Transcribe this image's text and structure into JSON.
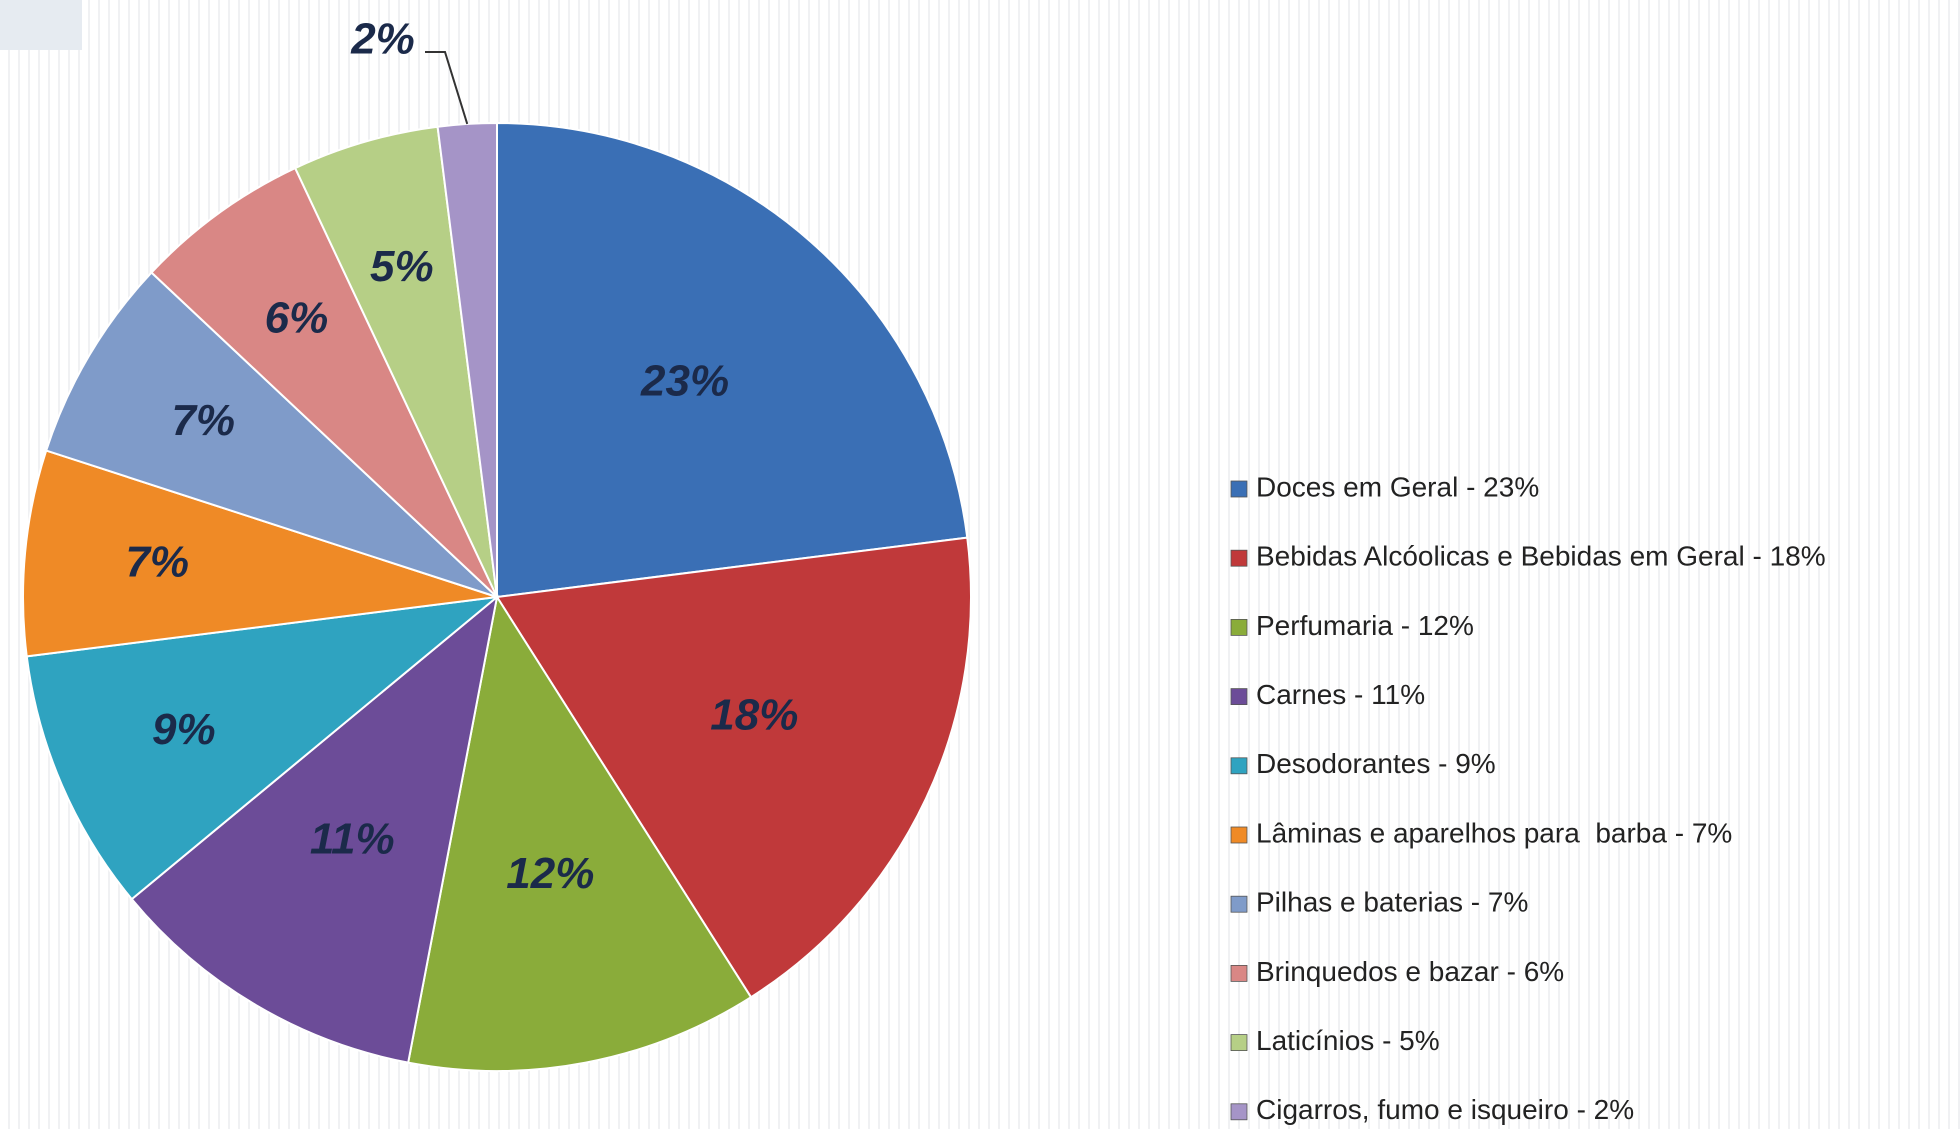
{
  "chart_data": {
    "type": "pie",
    "categories": [
      "Doces em Geral - 23%",
      "Bebidas Alcóolicas e Bebidas em Geral - 18%",
      "Perfumaria - 12%",
      "Carnes - 11%",
      "Desodorantes - 9%",
      "Lâminas e aparelhos para  barba - 7%",
      "Pilhas e baterias - 7%",
      "Brinquedos e bazar - 6%",
      "Laticínios - 5%",
      "Cigarros, fumo e isqueiro - 2%"
    ],
    "values": [
      23,
      18,
      12,
      11,
      9,
      7,
      7,
      6,
      5,
      2
    ],
    "value_labels": [
      "23%",
      "18%",
      "12%",
      "11%",
      "9%",
      "7%",
      "7%",
      "6%",
      "5%",
      "2%"
    ],
    "colors": [
      "#3a6fb5",
      "#c0393a",
      "#8aac3a",
      "#6c4c98",
      "#2fa3c0",
      "#ef8a26",
      "#7f9bc9",
      "#d98785",
      "#b6cf86",
      "#a594c7"
    ],
    "legend": "right"
  }
}
